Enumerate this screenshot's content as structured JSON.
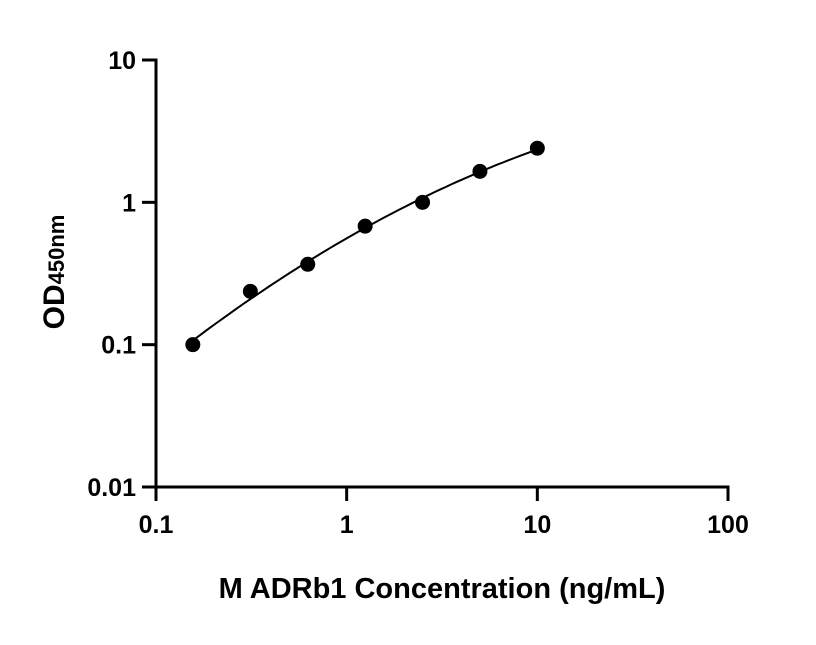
{
  "chart_data": {
    "type": "scatter",
    "title": "",
    "xlabel": "M ADRb1 Concentration (ng/mL)",
    "ylabel_main": "OD",
    "ylabel_sub": "450nm",
    "xscale": "log",
    "yscale": "log",
    "xlim": [
      0.1,
      100
    ],
    "ylim": [
      0.01,
      10
    ],
    "xticks": [
      "0.1",
      "1",
      "10",
      "100"
    ],
    "yticks": [
      "0.01",
      "0.1",
      "1",
      "10"
    ],
    "grid": false,
    "legend": "none",
    "fit_curve": true,
    "series": [
      {
        "x": [
          0.156,
          0.3125,
          0.625,
          1.25,
          2.5,
          5,
          10
        ],
        "y": [
          0.1,
          0.237,
          0.367,
          0.68,
          1.0,
          1.65,
          2.4
        ]
      }
    ],
    "colors": {
      "marker": "#000000",
      "line": "#000000"
    }
  }
}
